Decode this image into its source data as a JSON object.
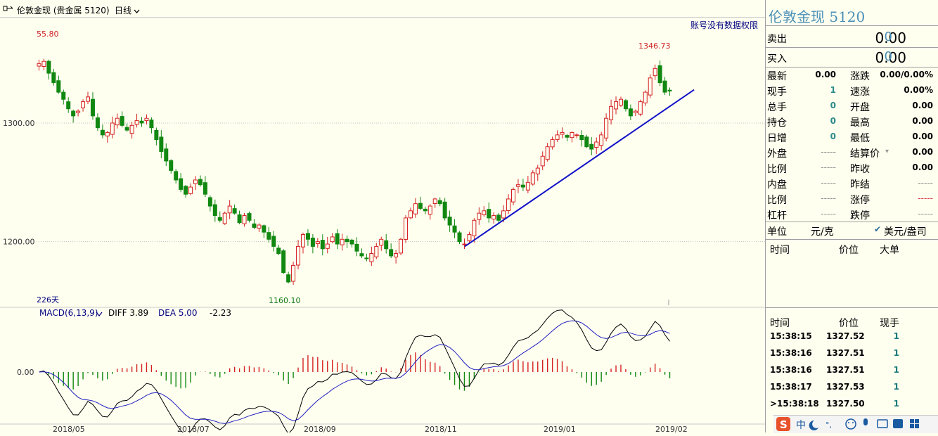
{
  "window": {
    "title": "伦敦金现 (贵金属 5120)",
    "period": "日线"
  },
  "permission_note": "账号没有数据权限",
  "chart_data": [
    {
      "type": "candlestick",
      "instrument": "伦敦金现",
      "ylim": [
        1150,
        1380
      ],
      "y_ticks": [
        "1300.00",
        "1200.00"
      ],
      "x_labels": [
        "2018/05",
        "2018/07",
        "2018/09",
        "2018/11",
        "2019/01",
        "2019/02"
      ],
      "annotations": {
        "high_label": "55.80",
        "peak_label": "1346.73",
        "low_label": "1160.10",
        "days_label": "226天"
      },
      "close_path": [
        1350,
        1352,
        1342,
        1334,
        1326,
        1320,
        1312,
        1306,
        1310,
        1318,
        1322,
        1306,
        1296,
        1290,
        1292,
        1300,
        1304,
        1298,
        1294,
        1298,
        1302,
        1300,
        1304,
        1296,
        1286,
        1276,
        1268,
        1260,
        1252,
        1244,
        1240,
        1246,
        1252,
        1248,
        1240,
        1230,
        1222,
        1218,
        1224,
        1230,
        1224,
        1216,
        1222,
        1218,
        1212,
        1214,
        1208,
        1202,
        1196,
        1190,
        1174,
        1166,
        1180,
        1196,
        1206,
        1202,
        1196,
        1200,
        1194,
        1198,
        1204,
        1198,
        1202,
        1200,
        1198,
        1192,
        1188,
        1186,
        1190,
        1196,
        1202,
        1194,
        1188,
        1190,
        1202,
        1220,
        1226,
        1232,
        1228,
        1226,
        1230,
        1236,
        1232,
        1220,
        1214,
        1208,
        1200,
        1198,
        1206,
        1218,
        1224,
        1226,
        1220,
        1222,
        1218,
        1226,
        1236,
        1244,
        1248,
        1246,
        1250,
        1258,
        1262,
        1272,
        1280,
        1286,
        1290,
        1292,
        1288,
        1292,
        1290,
        1286,
        1280,
        1278,
        1284,
        1290,
        1304,
        1314,
        1318,
        1320,
        1312,
        1306,
        1310,
        1318,
        1326,
        1338,
        1346,
        1334,
        1326,
        1327
      ],
      "trendline": [
        [
          1196,
          0
        ],
        [
          1328,
          1
        ]
      ]
    },
    {
      "type": "bar+line",
      "name": "MACD(6,13,9)",
      "indicators": {
        "diff": "DIFF 3.89",
        "dea": "DEA 5.00",
        "macd": "-2.23"
      },
      "zero_label": "0.00",
      "ylim": [
        -45,
        45
      ]
    }
  ],
  "right_panel": {
    "title": "伦敦金现  5120",
    "sell": {
      "label": "卖出",
      "price": "0.00",
      "volume": "0"
    },
    "buy": {
      "label": "买入",
      "price": "0.00",
      "volume": "0"
    },
    "stats": [
      {
        "l1": "最新",
        "v1": "0.00",
        "l2": "涨跌",
        "v2": "0.00/0.00%"
      },
      {
        "l1": "现手",
        "v1": "1",
        "l2": "速涨",
        "v2": "0.00%"
      },
      {
        "l1": "总手",
        "v1": "0",
        "l2": "开盘",
        "v2": "0.00"
      },
      {
        "l1": "持仓",
        "v1": "0",
        "l2": "最高",
        "v2": "0.00"
      },
      {
        "l1": "日增",
        "v1": "0",
        "l2": "最低",
        "v2": "0.00"
      },
      {
        "l1": "外盘",
        "v1": "-----",
        "l2": "结算价",
        "v2": "0.00"
      },
      {
        "l1": "比例",
        "v1": "-----",
        "l2": "昨收",
        "v2": "0.00"
      },
      {
        "l1": "内盘",
        "v1": "-----",
        "l2": "昨结",
        "v2": "-----"
      },
      {
        "l1": "比例",
        "v1": "-----",
        "l2": "涨停",
        "v2": "-----"
      },
      {
        "l1": "杠杆",
        "v1": "-----",
        "l2": "跌停",
        "v2": "-----"
      }
    ],
    "unit": {
      "label": "单位",
      "unit_a": "元/克",
      "unit_b": "美元/盎司"
    },
    "ticks_header": {
      "time": "时间",
      "price": "价位",
      "big": "大单"
    },
    "trades_header": {
      "time": "时间",
      "price": "价位",
      "vol": "现手"
    },
    "trades": [
      {
        "time": "15:38:15",
        "price": "1327.52",
        "vol": "1"
      },
      {
        "time": "15:38:16",
        "price": "1327.51",
        "vol": "1"
      },
      {
        "time": "15:38:16",
        "price": "1327.51",
        "vol": "1"
      },
      {
        "time": "15:38:17",
        "price": "1327.53",
        "vol": "1"
      },
      {
        "time": ">15:38:18",
        "price": "1327.50",
        "vol": "1"
      }
    ]
  },
  "tray": {
    "ime": "中"
  }
}
